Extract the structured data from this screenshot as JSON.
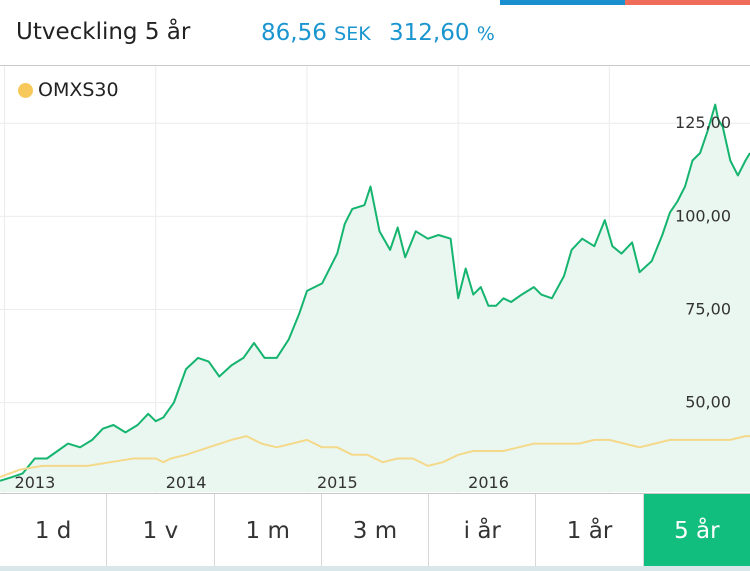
{
  "header": {
    "title": "Utveckling 5 år",
    "change_value": "86,56",
    "change_unit": "SEK",
    "change_pct": "312,60",
    "pct_unit": "%"
  },
  "colors": {
    "accent_blue": "#1b95cf",
    "stock_line": "#15b46f",
    "stock_fill": "#eaf7f1",
    "index_line": "#f4d98a",
    "legend_dot": "#f7c95a",
    "active_tab": "#12be7e",
    "grid": "#ececec"
  },
  "legend": {
    "label": "OMXS30"
  },
  "tabs": [
    {
      "label": "1 d",
      "active": false
    },
    {
      "label": "1 v",
      "active": false
    },
    {
      "label": "1 m",
      "active": false
    },
    {
      "label": "3 m",
      "active": false
    },
    {
      "label": "i år",
      "active": false
    },
    {
      "label": "1 år",
      "active": false
    },
    {
      "label": "5 år",
      "active": true
    }
  ],
  "chart_data": {
    "type": "line",
    "title": "",
    "xlabel": "",
    "ylabel": "",
    "x_ticks": [
      "2013",
      "2014",
      "2015",
      "2016"
    ],
    "y_ticks": [
      "50,00",
      "75,00",
      "100,00",
      "125,00"
    ],
    "y_tick_values": [
      50,
      75,
      100,
      125
    ],
    "ylim": [
      26,
      135
    ],
    "xlim": [
      2012.97,
      2017.93
    ],
    "grid": true,
    "legend_position": "top-left",
    "series": [
      {
        "name": "",
        "role": "stock",
        "points": [
          [
            2012.97,
            29
          ],
          [
            2013.05,
            30
          ],
          [
            2013.12,
            31
          ],
          [
            2013.2,
            35
          ],
          [
            2013.28,
            35
          ],
          [
            2013.35,
            37
          ],
          [
            2013.42,
            39
          ],
          [
            2013.5,
            38
          ],
          [
            2013.58,
            40
          ],
          [
            2013.65,
            43
          ],
          [
            2013.72,
            44
          ],
          [
            2013.8,
            42
          ],
          [
            2013.88,
            44
          ],
          [
            2013.95,
            47
          ],
          [
            2014.0,
            45
          ],
          [
            2014.05,
            46
          ],
          [
            2014.12,
            50
          ],
          [
            2014.2,
            59
          ],
          [
            2014.28,
            62
          ],
          [
            2014.35,
            61
          ],
          [
            2014.42,
            57
          ],
          [
            2014.5,
            60
          ],
          [
            2014.58,
            62
          ],
          [
            2014.65,
            66
          ],
          [
            2014.72,
            62
          ],
          [
            2014.8,
            62
          ],
          [
            2014.88,
            67
          ],
          [
            2014.95,
            74
          ],
          [
            2015.0,
            80
          ],
          [
            2015.1,
            82
          ],
          [
            2015.2,
            90
          ],
          [
            2015.25,
            98
          ],
          [
            2015.3,
            102
          ],
          [
            2015.38,
            103
          ],
          [
            2015.42,
            108
          ],
          [
            2015.48,
            96
          ],
          [
            2015.55,
            91
          ],
          [
            2015.6,
            97
          ],
          [
            2015.65,
            89
          ],
          [
            2015.72,
            96
          ],
          [
            2015.8,
            94
          ],
          [
            2015.87,
            95
          ],
          [
            2015.95,
            94
          ],
          [
            2016.0,
            78
          ],
          [
            2016.05,
            86
          ],
          [
            2016.1,
            79
          ],
          [
            2016.15,
            81
          ],
          [
            2016.2,
            76
          ],
          [
            2016.25,
            76
          ],
          [
            2016.3,
            78
          ],
          [
            2016.35,
            77
          ],
          [
            2016.42,
            79
          ],
          [
            2016.5,
            81
          ],
          [
            2016.55,
            79
          ],
          [
            2016.62,
            78
          ],
          [
            2016.7,
            84
          ],
          [
            2016.75,
            91
          ],
          [
            2016.82,
            94
          ],
          [
            2016.9,
            92
          ],
          [
            2016.97,
            99
          ],
          [
            2017.02,
            92
          ],
          [
            2017.08,
            90
          ],
          [
            2017.15,
            93
          ],
          [
            2017.2,
            85
          ],
          [
            2017.28,
            88
          ],
          [
            2017.35,
            95
          ],
          [
            2017.4,
            101
          ],
          [
            2017.45,
            104
          ],
          [
            2017.5,
            108
          ],
          [
            2017.55,
            115
          ],
          [
            2017.6,
            117
          ],
          [
            2017.65,
            123
          ],
          [
            2017.7,
            130
          ],
          [
            2017.72,
            126
          ],
          [
            2017.75,
            124
          ],
          [
            2017.8,
            115
          ],
          [
            2017.85,
            111
          ],
          [
            2017.9,
            115
          ],
          [
            2017.93,
            117
          ]
        ]
      },
      {
        "name": "OMXS30",
        "role": "index",
        "points": [
          [
            2012.97,
            30
          ],
          [
            2013.1,
            32
          ],
          [
            2013.25,
            33
          ],
          [
            2013.4,
            33
          ],
          [
            2013.55,
            33
          ],
          [
            2013.7,
            34
          ],
          [
            2013.85,
            35
          ],
          [
            2014.0,
            35
          ],
          [
            2014.05,
            34
          ],
          [
            2014.1,
            35
          ],
          [
            2014.2,
            36
          ],
          [
            2014.35,
            38
          ],
          [
            2014.5,
            40
          ],
          [
            2014.6,
            41
          ],
          [
            2014.7,
            39
          ],
          [
            2014.8,
            38
          ],
          [
            2014.9,
            39
          ],
          [
            2015.0,
            40
          ],
          [
            2015.1,
            38
          ],
          [
            2015.2,
            38
          ],
          [
            2015.3,
            36
          ],
          [
            2015.4,
            36
          ],
          [
            2015.5,
            34
          ],
          [
            2015.6,
            35
          ],
          [
            2015.7,
            35
          ],
          [
            2015.8,
            33
          ],
          [
            2015.9,
            34
          ],
          [
            2016.0,
            36
          ],
          [
            2016.1,
            37
          ],
          [
            2016.2,
            37
          ],
          [
            2016.3,
            37
          ],
          [
            2016.4,
            38
          ],
          [
            2016.5,
            39
          ],
          [
            2016.6,
            39
          ],
          [
            2016.7,
            39
          ],
          [
            2016.8,
            39
          ],
          [
            2016.9,
            40
          ],
          [
            2017.0,
            40
          ],
          [
            2017.1,
            39
          ],
          [
            2017.2,
            38
          ],
          [
            2017.3,
            39
          ],
          [
            2017.4,
            40
          ],
          [
            2017.5,
            40
          ],
          [
            2017.6,
            40
          ],
          [
            2017.7,
            40
          ],
          [
            2017.8,
            40
          ],
          [
            2017.9,
            41
          ],
          [
            2017.93,
            41
          ]
        ]
      }
    ]
  }
}
